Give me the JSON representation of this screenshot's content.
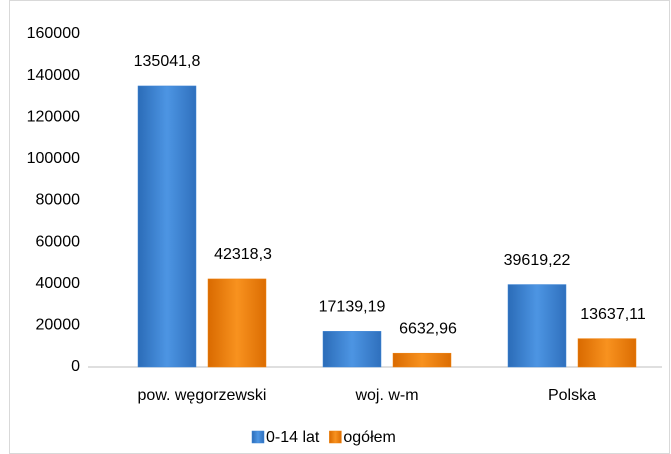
{
  "chart_data": {
    "type": "bar",
    "categories": [
      "pow. węgorzewski",
      "woj. w-m",
      "Polska"
    ],
    "series": [
      {
        "name": "0-14 lat",
        "color": "#3f86d6",
        "values": [
          135041.8,
          17139.19,
          39619.22
        ],
        "value_labels": [
          "135041,8",
          "17139,19",
          "39619,22"
        ]
      },
      {
        "name": "ogółem",
        "color": "#f0820e",
        "values": [
          42318.3,
          6632.96,
          13637.11
        ],
        "value_labels": [
          "42318,3",
          "6632,96",
          "13637,11"
        ]
      }
    ],
    "ylim": [
      0,
      160000
    ],
    "yticks": [
      0,
      20000,
      40000,
      60000,
      80000,
      100000,
      120000,
      140000,
      160000
    ],
    "legend": "bottom"
  }
}
